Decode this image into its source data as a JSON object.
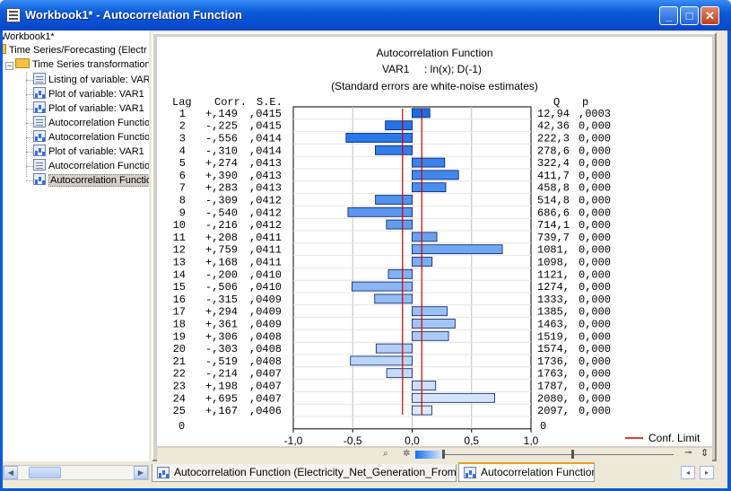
{
  "window": {
    "title": "Workbook1* - Autocorrelation Function",
    "controls": {
      "minimize": "_",
      "maximize": "□",
      "close": "✕"
    }
  },
  "tree": {
    "root": "Workbook1*",
    "group": "Time Series/Forecasting (Electr",
    "subgroup": "Time Series transformation",
    "items": [
      {
        "label": "Listing of variable: VAR",
        "icon": "spreadsheet-icon"
      },
      {
        "label": "Plot of variable: VAR1",
        "icon": "graph-icon"
      },
      {
        "label": "Plot of variable: VAR1",
        "icon": "graph-icon"
      },
      {
        "label": "Autocorrelation Functio",
        "icon": "spreadsheet-icon"
      },
      {
        "label": "Autocorrelation Functio",
        "icon": "graph-icon"
      },
      {
        "label": "Plot of variable: VAR1",
        "icon": "graph-icon"
      },
      {
        "label": "Autocorrelation Functio",
        "icon": "spreadsheet-icon"
      },
      {
        "label": "Autocorrelation Functio",
        "icon": "graph-icon",
        "selected": true
      }
    ]
  },
  "chart_data": {
    "type": "bar",
    "orientation": "horizontal",
    "title": "Autocorrelation Function",
    "subtitle_var": "VAR1",
    "subtitle_transform": ": ln(x); D(-1)",
    "note": "(Standard errors are white-noise estimates)",
    "headers": {
      "lag": "Lag",
      "corr": "Corr.",
      "se": "S.E.",
      "q": "Q",
      "p": "p"
    },
    "lags": [
      1,
      2,
      3,
      4,
      5,
      6,
      7,
      8,
      9,
      10,
      11,
      12,
      13,
      14,
      15,
      16,
      17,
      18,
      19,
      20,
      21,
      22,
      23,
      24,
      25
    ],
    "values": [
      0.149,
      -0.225,
      -0.556,
      -0.31,
      0.274,
      0.39,
      0.283,
      -0.309,
      -0.54,
      -0.216,
      0.208,
      0.759,
      0.168,
      -0.2,
      -0.506,
      -0.315,
      0.294,
      0.361,
      0.306,
      -0.303,
      -0.519,
      -0.214,
      0.198,
      0.695,
      0.167
    ],
    "corr_text": [
      "+,149",
      "-,225",
      "-,556",
      "-,310",
      "+,274",
      "+,390",
      "+,283",
      "-,309",
      "-,540",
      "-,216",
      "+,208",
      "+,759",
      "+,168",
      "-,200",
      "-,506",
      "-,315",
      "+,294",
      "+,361",
      "+,306",
      "-,303",
      "-,519",
      "-,214",
      "+,198",
      "+,695",
      "+,167"
    ],
    "se_text": [
      ",0415",
      ",0415",
      ",0414",
      ",0414",
      ",0413",
      ",0413",
      ",0413",
      ",0412",
      ",0412",
      ",0412",
      ",0411",
      ",0411",
      ",0411",
      ",0410",
      ",0410",
      ",0409",
      ",0409",
      ",0409",
      ",0408",
      ",0408",
      ",0408",
      ",0407",
      ",0407",
      ",0407",
      ",0406"
    ],
    "q_text": [
      "12,94",
      "42,36",
      "222,3",
      "278,6",
      "322,4",
      "411,7",
      "458,8",
      "514,8",
      "686,6",
      "714,1",
      "739,7",
      "1081,",
      "1098,",
      "1121,",
      "1274,",
      "1333,",
      "1385,",
      "1463,",
      "1519,",
      "1574,",
      "1736,",
      "1763,",
      "1787,",
      "2080,",
      "2097,"
    ],
    "p_text": [
      ",0003",
      "0,000",
      "0,000",
      "0,000",
      "0,000",
      "0,000",
      "0,000",
      "0,000",
      "0,000",
      "0,000",
      "0,000",
      "0,000",
      "0,000",
      "0,000",
      "0,000",
      "0,000",
      "0,000",
      "0,000",
      "0,000",
      "0,000",
      "0,000",
      "0,000",
      "0,000",
      "0,000",
      "0,000"
    ],
    "zero_row": {
      "lag": "0",
      "q": "0"
    },
    "xticks": [
      "-1,0",
      "-0,5",
      "0,0",
      "0,5",
      "1,0"
    ],
    "xlim": [
      -1.0,
      1.0
    ],
    "conf_limit": 0.081,
    "legend": "Conf. Limit",
    "legend_position": "bottom-right",
    "grid": true,
    "colors": {
      "bar_dark": "#1a6ee8",
      "bar_light": "#dbe9fb",
      "conf": "#cc0000",
      "grid": "#c0c0c0"
    }
  },
  "tabs": [
    {
      "label": "Autocorrelation Function (Electricity_Net_Generation_From_Coa...",
      "active": false
    },
    {
      "label": "Autocorrelation Function",
      "active": true
    }
  ],
  "nav": {
    "prev": "◂",
    "next": "▸"
  }
}
